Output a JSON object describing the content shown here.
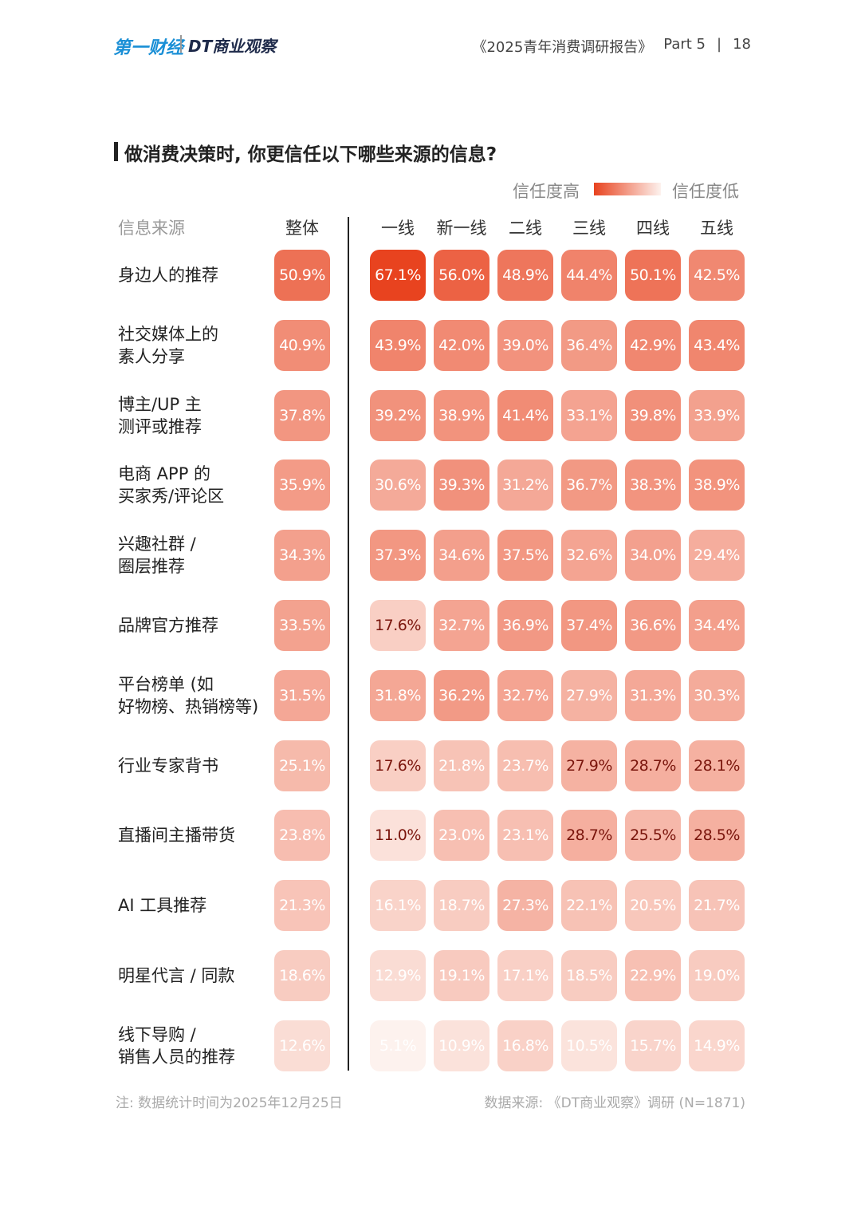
{
  "header": {
    "logo_left": "第一财经",
    "logo_right": "DT商业观察",
    "report": "《2025青年消费调研报告》",
    "part": "Part 5",
    "page": "18"
  },
  "chart_data": {
    "type": "heatmap",
    "title": "做消费决策时, 你更信任以下哪些来源的信息?",
    "legend": {
      "high": "信任度高",
      "low": "信任度低"
    },
    "row_header": "信息来源",
    "columns": [
      "整体",
      "一线",
      "新一线",
      "二线",
      "三线",
      "四线",
      "五线"
    ],
    "rows": [
      "身边人的推荐",
      "社交媒体上的\n素人分享",
      "博主/UP 主\n测评或推荐",
      "电商 APP 的\n买家秀/评论区",
      "兴趣社群 /\n圈层推荐",
      "品牌官方推荐",
      "平台榜单 (如\n好物榜、热销榜等)",
      "行业专家背书",
      "直播间主播带货",
      "AI 工具推荐",
      "明星代言 / 同款",
      "线下导购 /\n销售人员的推荐"
    ],
    "values": [
      [
        50.9,
        67.1,
        56.0,
        48.9,
        44.4,
        50.1,
        42.5
      ],
      [
        40.9,
        43.9,
        42.0,
        39.0,
        36.4,
        42.9,
        43.4
      ],
      [
        37.8,
        39.2,
        38.9,
        41.4,
        33.1,
        39.8,
        33.9
      ],
      [
        35.9,
        30.6,
        39.3,
        31.2,
        36.7,
        38.3,
        38.9
      ],
      [
        34.3,
        37.3,
        34.6,
        37.5,
        32.6,
        34.0,
        29.4
      ],
      [
        33.5,
        17.6,
        32.7,
        36.9,
        37.4,
        36.6,
        34.4
      ],
      [
        31.5,
        31.8,
        36.2,
        32.7,
        27.9,
        31.3,
        30.3
      ],
      [
        25.1,
        17.6,
        21.8,
        23.7,
        27.9,
        28.7,
        28.1
      ],
      [
        23.8,
        11.0,
        23.0,
        23.1,
        28.7,
        25.5,
        28.5
      ],
      [
        21.3,
        16.1,
        18.7,
        27.3,
        22.1,
        20.5,
        21.7
      ],
      [
        18.6,
        12.9,
        19.1,
        17.1,
        18.5,
        22.9,
        19.0
      ],
      [
        12.6,
        5.1,
        10.9,
        16.8,
        10.5,
        15.7,
        14.9
      ]
    ],
    "value_labels": [
      [
        "50.9%",
        "67.1%",
        "56.0%",
        "48.9%",
        "44.4%",
        "50.1%",
        "42.5%"
      ],
      [
        "40.9%",
        "43.9%",
        "42.0%",
        "39.0%",
        "36.4%",
        "42.9%",
        "43.4%"
      ],
      [
        "37.8%",
        "39.2%",
        "38.9%",
        "41.4%",
        "33.1%",
        "39.8%",
        "33.9%"
      ],
      [
        "35.9%",
        "30.6%",
        "39.3%",
        "31.2%",
        "36.7%",
        "38.3%",
        "38.9%"
      ],
      [
        "34.3%",
        "37.3%",
        "34.6%",
        "37.5%",
        "32.6%",
        "34.0%",
        "29.4%"
      ],
      [
        "33.5%",
        "17.6%",
        "32.7%",
        "36.9%",
        "37.4%",
        "36.6%",
        "34.4%"
      ],
      [
        "31.5%",
        "31.8%",
        "36.2%",
        "32.7%",
        "27.9%",
        "31.3%",
        "30.3%"
      ],
      [
        "25.1%",
        "17.6%",
        "21.8%",
        "23.7%",
        "27.9%",
        "28.7%",
        "28.1%"
      ],
      [
        "23.8%",
        "11.0%",
        "23.0%",
        "23.1%",
        "28.7%",
        "25.5%",
        "28.5%"
      ],
      [
        "21.3%",
        "16.1%",
        "18.7%",
        "27.3%",
        "22.1%",
        "20.5%",
        "21.7%"
      ],
      [
        "18.6%",
        "12.9%",
        "19.1%",
        "17.1%",
        "18.5%",
        "22.9%",
        "19.0%"
      ],
      [
        "12.6%",
        "5.1%",
        "10.9%",
        "16.8%",
        "10.5%",
        "15.7%",
        "14.9%"
      ]
    ],
    "colors": {
      "high": "#e8431f",
      "low": "#fdf2ee"
    },
    "emphasized": [
      [
        5,
        1
      ],
      [
        7,
        1
      ],
      [
        7,
        4
      ],
      [
        7,
        5
      ],
      [
        7,
        6
      ],
      [
        8,
        1
      ],
      [
        8,
        4
      ],
      [
        8,
        5
      ],
      [
        8,
        6
      ]
    ],
    "note": "注: 数据统计时间为2025年12月25日",
    "source": "数据来源: 《DT商业观察》调研 (N=1871)"
  }
}
